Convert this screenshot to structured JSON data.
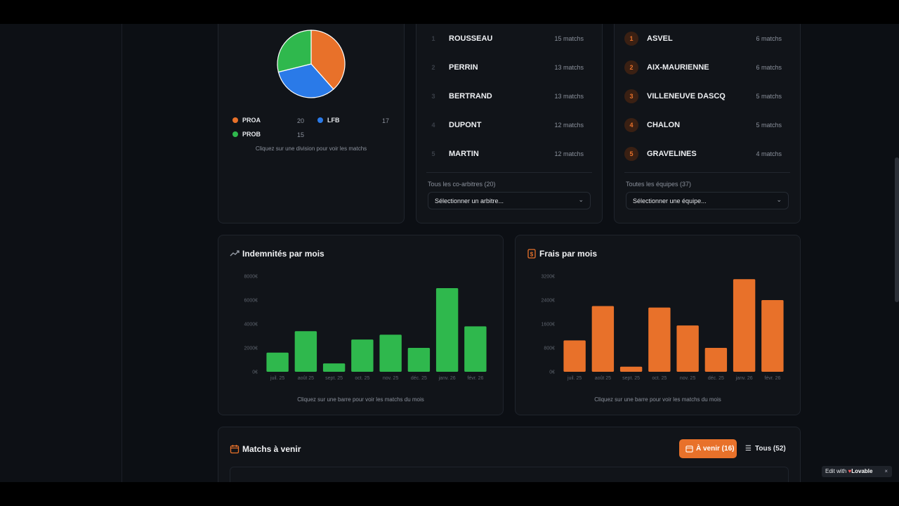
{
  "division_card": {
    "legend": [
      {
        "name": "PROA",
        "count": "20",
        "color": "#e8712a"
      },
      {
        "name": "LFB",
        "count": "17",
        "color": "#2a7ae8"
      },
      {
        "name": "PROB",
        "count": "15",
        "color": "#2fb84d"
      }
    ],
    "hint": "Cliquez sur une division pour voir les matchs"
  },
  "coarbitres_card": {
    "rows": [
      {
        "rank": "1",
        "name": "ROUSSEAU",
        "count": "15 matchs"
      },
      {
        "rank": "2",
        "name": "PERRIN",
        "count": "13 matchs"
      },
      {
        "rank": "3",
        "name": "BERTRAND",
        "count": "13 matchs"
      },
      {
        "rank": "4",
        "name": "DUPONT",
        "count": "12 matchs"
      },
      {
        "rank": "5",
        "name": "MARTIN",
        "count": "12 matchs"
      }
    ],
    "select_label": "Tous les co-arbitres (20)",
    "select_value": "Sélectionner un arbitre..."
  },
  "equipes_card": {
    "rows": [
      {
        "rank": "1",
        "name": "ASVEL",
        "count": "6 matchs"
      },
      {
        "rank": "2",
        "name": "AIX-MAURIENNE",
        "count": "6 matchs"
      },
      {
        "rank": "3",
        "name": "VILLENEUVE DASCQ",
        "count": "5 matchs"
      },
      {
        "rank": "4",
        "name": "CHALON",
        "count": "5 matchs"
      },
      {
        "rank": "5",
        "name": "GRAVELINES",
        "count": "4 matchs"
      }
    ],
    "select_label": "Toutes les équipes (37)",
    "select_value": "Sélectionner une équipe..."
  },
  "indemnites_card": {
    "title": "Indemnités par mois",
    "hint": "Cliquez sur une barre pour voir les matchs du mois"
  },
  "frais_card": {
    "title": "Frais par mois",
    "hint": "Cliquez sur une barre pour voir les matchs du mois"
  },
  "matchs_card": {
    "title": "Matchs à venir",
    "btn_upcoming": "À venir (16)",
    "btn_all": "Tous (52)"
  },
  "lovable": {
    "edit_with": "Edit with",
    "brand": "Lovable"
  },
  "colors": {
    "accent": "#e8712a",
    "green": "#2fb84d",
    "blue": "#2a7ae8"
  },
  "chart_data": [
    {
      "type": "pie",
      "categories": [
        "PROA",
        "LFB",
        "PROB"
      ],
      "values": [
        20,
        17,
        15
      ],
      "colors": [
        "#e8712a",
        "#2a7ae8",
        "#2fb84d"
      ]
    },
    {
      "type": "bar",
      "title": "Indemnités par mois",
      "categories": [
        "juil. 25",
        "août 25",
        "sept. 25",
        "oct. 25",
        "nov. 25",
        "déc. 25",
        "janv. 26",
        "févr. 26"
      ],
      "values": [
        1600,
        3400,
        700,
        2700,
        3100,
        2000,
        7000,
        3800
      ],
      "yticks": [
        "0€",
        "2000€",
        "4000€",
        "6000€",
        "8000€"
      ],
      "ylim": [
        0,
        8000
      ],
      "color": "#2fb84d"
    },
    {
      "type": "bar",
      "title": "Frais par mois",
      "categories": [
        "juil. 25",
        "août 25",
        "sept. 25",
        "oct. 25",
        "nov. 25",
        "déc. 25",
        "janv. 26",
        "févr. 26"
      ],
      "values": [
        1050,
        2200,
        170,
        2150,
        1550,
        800,
        3100,
        2400
      ],
      "yticks": [
        "0€",
        "800€",
        "1600€",
        "2400€",
        "3200€"
      ],
      "ylim": [
        0,
        3200
      ],
      "color": "#e8712a"
    }
  ]
}
